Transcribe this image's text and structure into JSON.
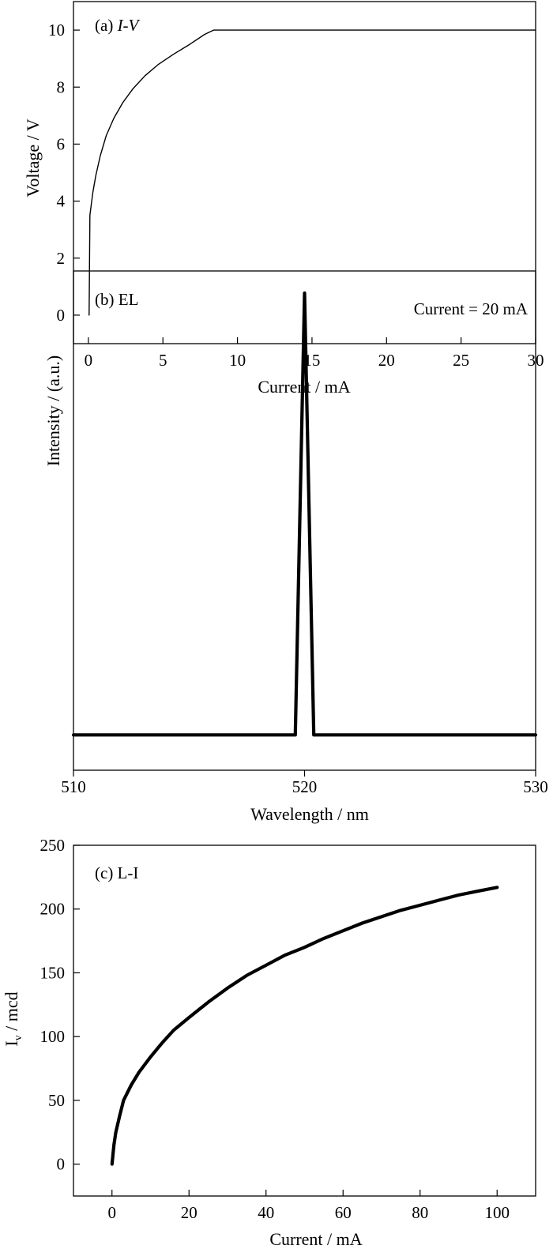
{
  "chart_data": [
    {
      "type": "line",
      "panel_label": "(a)",
      "panel_title": "I-V",
      "xlabel": "Current / mA",
      "ylabel": "Voltage / V",
      "xlim": [
        -1,
        30
      ],
      "ylim": [
        -1,
        11
      ],
      "xticks": [
        0,
        5,
        10,
        15,
        20,
        25,
        30
      ],
      "xticklabels": [
        "0",
        "5",
        "10",
        "15",
        "20",
        "25",
        "30"
      ],
      "yticks": [
        0,
        2,
        4,
        6,
        8,
        10
      ],
      "yticklabels": [
        "0",
        "2",
        "4",
        "6",
        "8",
        "10"
      ],
      "grid": false,
      "series": [
        {
          "x": [
            0.05,
            0.1,
            0.15,
            0.3,
            0.5,
            0.8,
            1.2,
            1.7,
            2.3,
            3.0,
            3.8,
            4.7,
            5.7,
            6.8,
            7.8,
            8.4,
            9.0,
            12,
            15,
            20,
            25,
            30
          ],
          "y": [
            0.0,
            3.5,
            3.7,
            4.3,
            4.9,
            5.6,
            6.3,
            6.9,
            7.45,
            7.95,
            8.4,
            8.8,
            9.15,
            9.5,
            9.85,
            10.0,
            10.0,
            10.0,
            10.0,
            10.0,
            10.0,
            10.0
          ]
        }
      ]
    },
    {
      "type": "line",
      "panel_label": "(b) EL",
      "annotation": "Current = 20 mA",
      "xlabel": "Wavelength / nm",
      "ylabel": "Intensity / (a.u.)",
      "xlim": [
        510,
        530
      ],
      "ylim": [
        -0.08,
        1.05
      ],
      "xticks": [
        510,
        520,
        530
      ],
      "xticklabels": [
        "510",
        "520",
        "530"
      ],
      "yticks": [],
      "grid": false,
      "series": [
        {
          "x": [
            510,
            519.6,
            520.0,
            520.4,
            530
          ],
          "y": [
            0,
            0,
            1.0,
            0,
            0
          ]
        }
      ]
    },
    {
      "type": "line",
      "panel_label": "(c) L-I",
      "xlabel": "Current / mA",
      "ylabel": "Iv / mcd",
      "ylabel_main": "I",
      "ylabel_sub": "v",
      "ylabel_rest": " / mcd",
      "xlim": [
        -10,
        110
      ],
      "ylim": [
        -25,
        250
      ],
      "xticks": [
        0,
        20,
        40,
        60,
        80,
        100
      ],
      "xticklabels": [
        "0",
        "20",
        "40",
        "60",
        "80",
        "100"
      ],
      "yticks": [
        0,
        50,
        100,
        150,
        200,
        250
      ],
      "yticklabels": [
        "0",
        "50",
        "100",
        "150",
        "200",
        "250"
      ],
      "grid": false,
      "series": [
        {
          "x": [
            0,
            0.5,
            1,
            2,
            3,
            5,
            7,
            10,
            13,
            16,
            20,
            25,
            30,
            35,
            40,
            45,
            50,
            55,
            60,
            65,
            70,
            75,
            80,
            85,
            90,
            95,
            100
          ],
          "y": [
            0,
            15,
            25,
            38,
            50,
            62,
            72,
            84,
            95,
            105,
            115,
            127,
            138,
            148,
            156,
            164,
            170,
            177,
            183,
            189,
            194,
            199,
            203,
            207,
            211,
            214,
            217
          ]
        }
      ]
    }
  ]
}
